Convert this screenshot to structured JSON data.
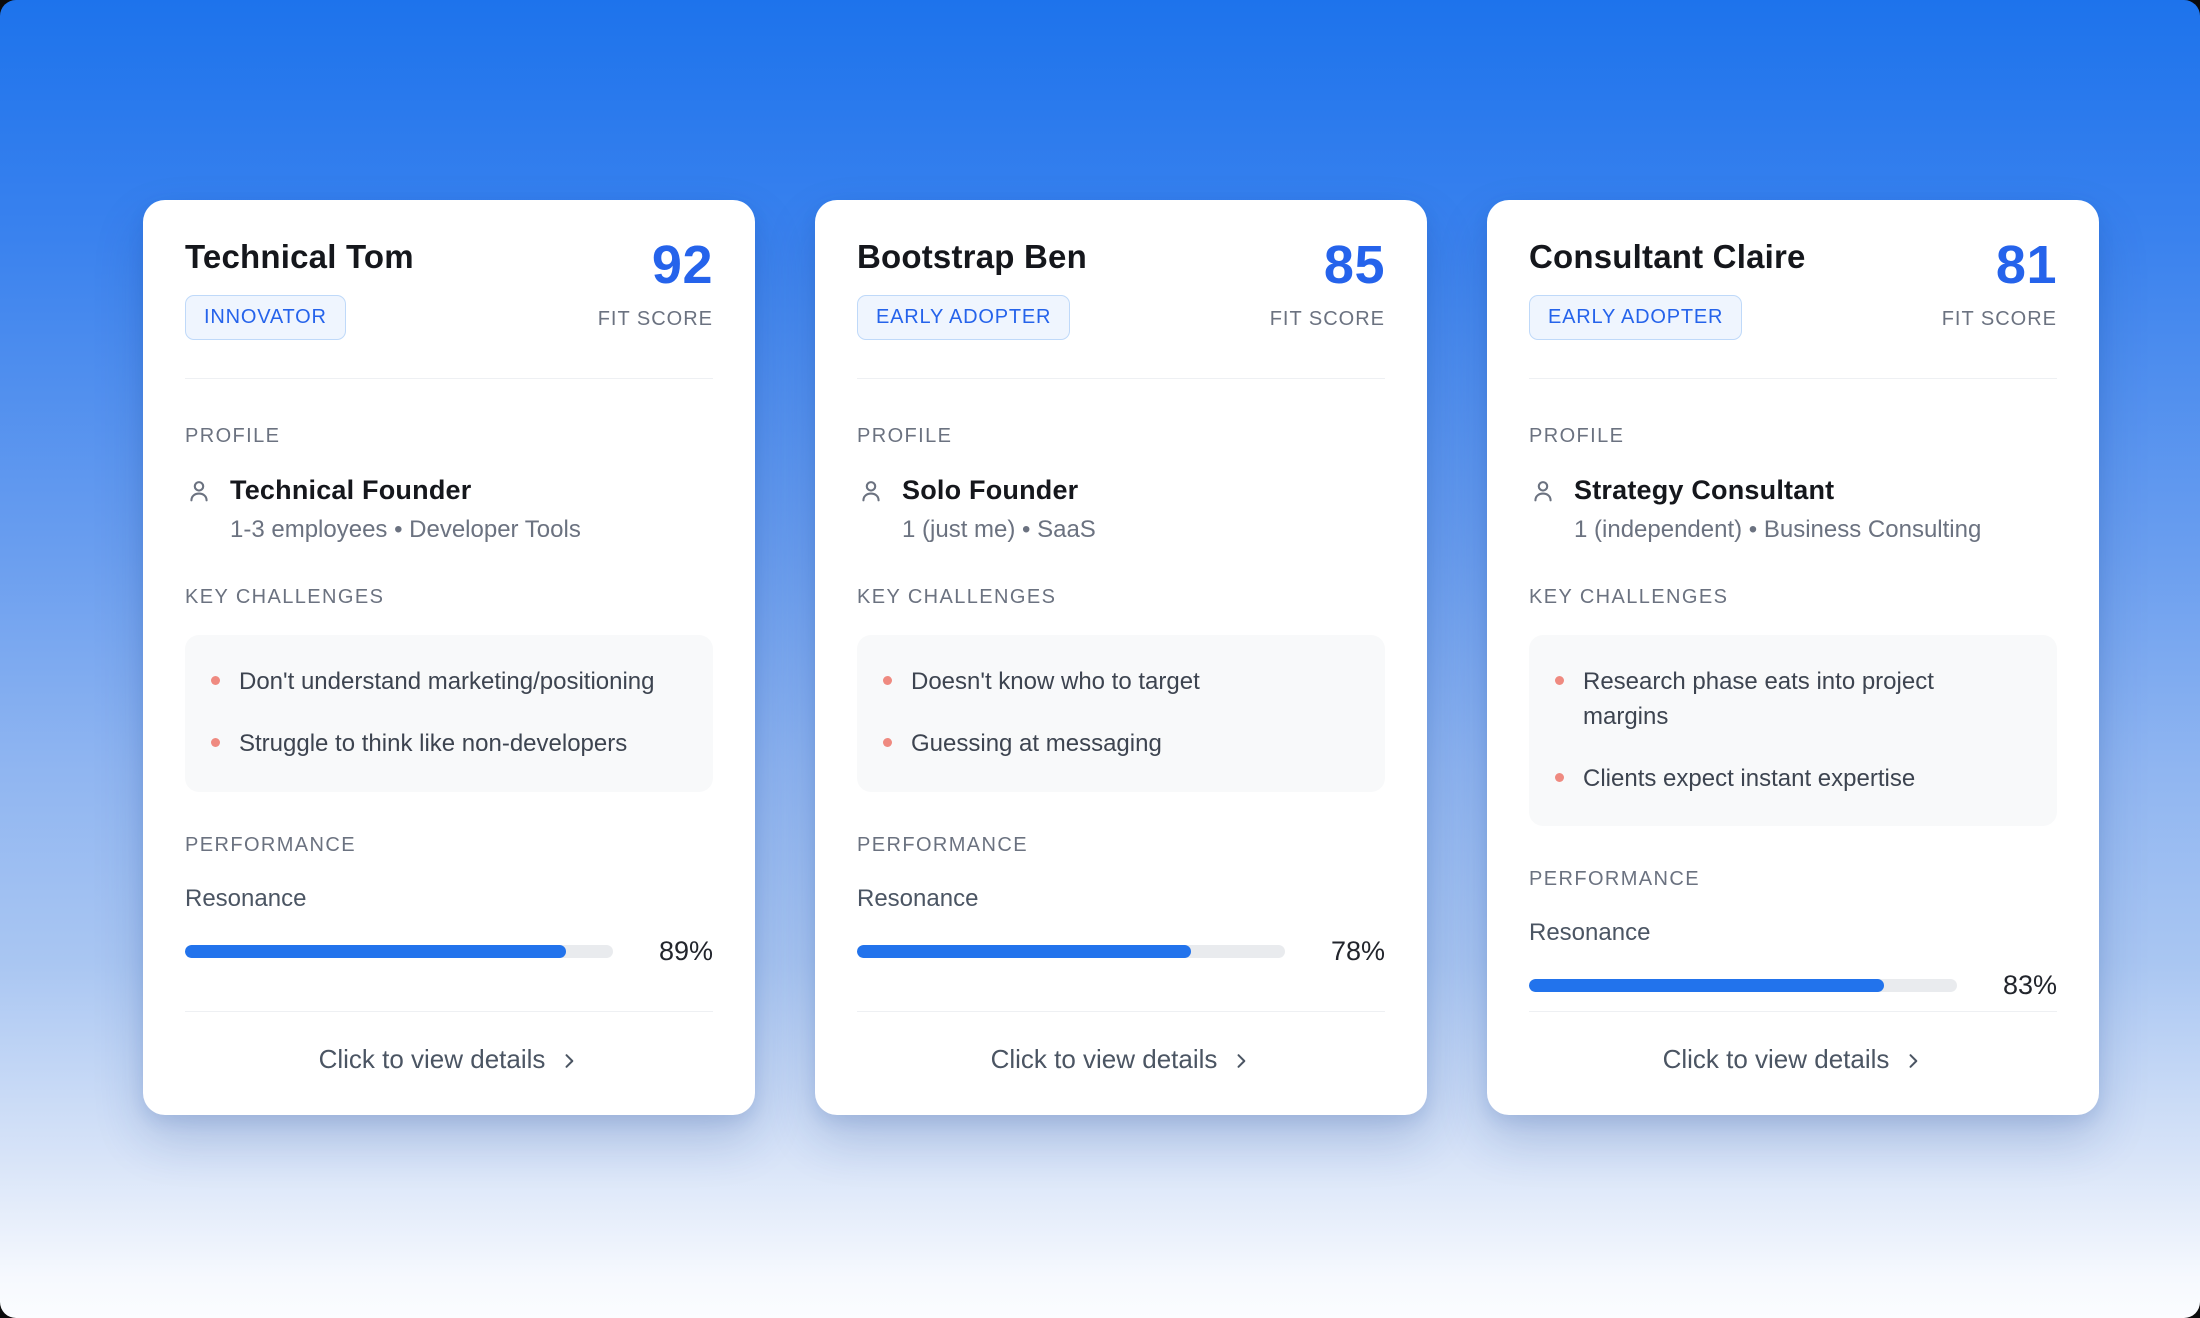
{
  "background": {
    "gradient_top": "#1d73ec",
    "gradient_bottom": "#fbfdff"
  },
  "accent_blue": "#2563eb",
  "bullet_color": "#ef8a80",
  "cards": [
    {
      "name": "Technical Tom",
      "segment": "INNOVATOR",
      "score": "92",
      "score_label": "FIT SCORE",
      "profile_label": "PROFILE",
      "profile_role": "Technical Founder",
      "profile_details": "1-3 employees • Developer Tools",
      "challenges_label": "KEY CHALLENGES",
      "challenges": [
        "Don't understand marketing/positioning",
        "Struggle to think like non-developers"
      ],
      "performance_label": "PERFORMANCE",
      "metric_label": "Resonance",
      "metric_value": 89,
      "metric_display": "89%",
      "footer_label": "Click to view details"
    },
    {
      "name": "Bootstrap Ben",
      "segment": "EARLY ADOPTER",
      "score": "85",
      "score_label": "FIT SCORE",
      "profile_label": "PROFILE",
      "profile_role": "Solo Founder",
      "profile_details": "1 (just me) • SaaS",
      "challenges_label": "KEY CHALLENGES",
      "challenges": [
        "Doesn't know who to target",
        "Guessing at messaging"
      ],
      "performance_label": "PERFORMANCE",
      "metric_label": "Resonance",
      "metric_value": 78,
      "metric_display": "78%",
      "footer_label": "Click to view details"
    },
    {
      "name": "Consultant Claire",
      "segment": "EARLY ADOPTER",
      "score": "81",
      "score_label": "FIT SCORE",
      "profile_label": "PROFILE",
      "profile_role": "Strategy Consultant",
      "profile_details": "1 (independent) • Business Consulting",
      "challenges_label": "KEY CHALLENGES",
      "challenges": [
        "Research phase eats into project margins",
        "Clients expect instant expertise"
      ],
      "performance_label": "PERFORMANCE",
      "metric_label": "Resonance",
      "metric_value": 83,
      "metric_display": "83%",
      "footer_label": "Click to view details"
    }
  ]
}
